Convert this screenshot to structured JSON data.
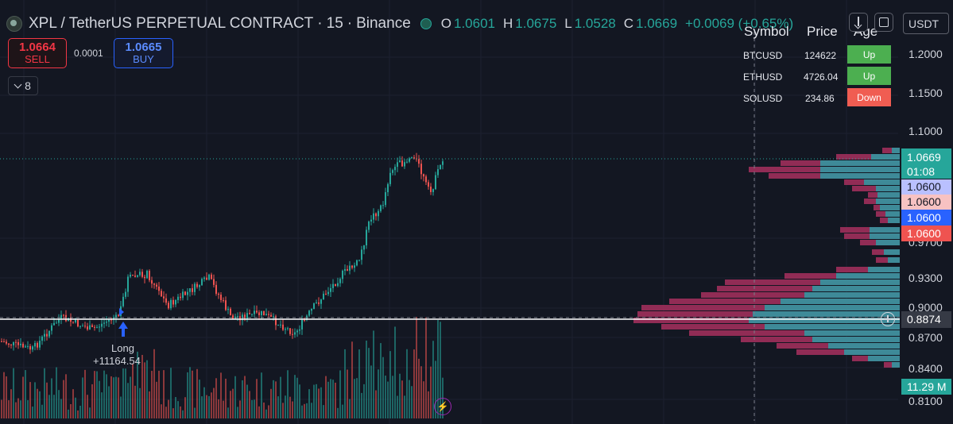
{
  "header": {
    "title": "XPL / TetherUS PERPETUAL CONTRACT",
    "interval": "15",
    "exchange": "Binance",
    "sep": "·",
    "ohlc": [
      {
        "k": "O",
        "v": "1.0601"
      },
      {
        "k": "H",
        "v": "1.0675"
      },
      {
        "k": "L",
        "v": "1.0528"
      },
      {
        "k": "C",
        "v": "1.0669"
      }
    ],
    "change": "+0.0069 (+0.65%)"
  },
  "trade": {
    "sell_price": "1.0664",
    "sell_label": "SELL",
    "spread": "0.0001",
    "buy_price": "1.0665",
    "buy_label": "BUY"
  },
  "indicators": {
    "count": "8"
  },
  "currency": "USDT",
  "watchlist": {
    "headers": [
      "Symbol",
      "Price",
      "Age"
    ],
    "rows": [
      {
        "symbol": "BTCUSD",
        "price": "124622",
        "trend": "Up"
      },
      {
        "symbol": "ETHUSD",
        "price": "4726.04",
        "trend": "Up"
      },
      {
        "symbol": "SOLUSD",
        "price": "234.86",
        "trend": "Down"
      }
    ]
  },
  "price_scale": [
    "1.2000",
    "1.1500",
    "1.1000",
    "0.9700",
    "0.9300",
    "0.9000",
    "0.8700",
    "0.8400",
    "0.8100"
  ],
  "price_labels": {
    "current": "1.0669",
    "countdown": "01:08",
    "l1": "1.0600",
    "l2": "1.0600",
    "l3": "1.0600",
    "l4": "1.0600",
    "crosshair": "0.8874",
    "volume": "11.29 M"
  },
  "annotation": {
    "label": "Long",
    "value": "+11164.54"
  },
  "colors": {
    "bg": "#131722",
    "up": "#26a69a",
    "down": "#ef5350",
    "teal_profile": "#3a8f9c",
    "magenta_profile": "#a8305e"
  }
}
